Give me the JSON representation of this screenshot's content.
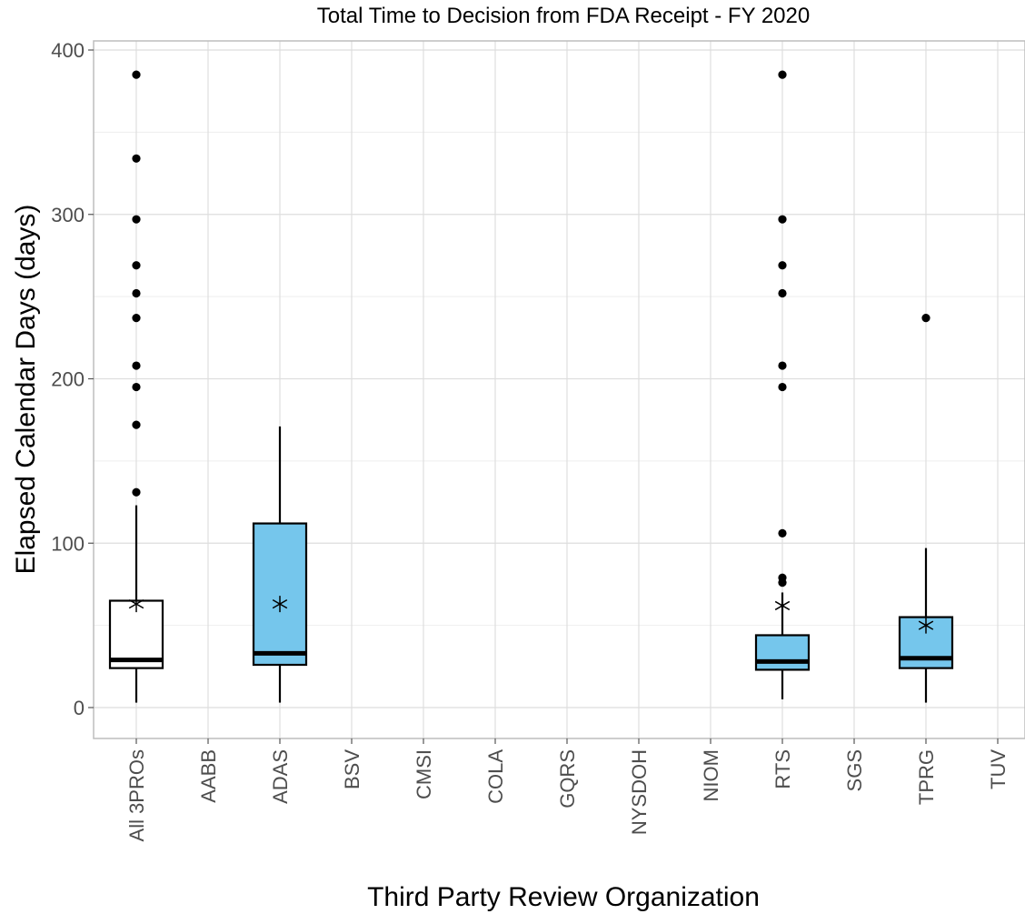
{
  "chart_data": {
    "type": "boxplot",
    "title": "Total Time to Decision from FDA Receipt - FY 2020",
    "xlabel": "Third Party Review Organization",
    "ylabel": "Elapsed Calendar Days (days)",
    "ylim": [
      -18,
      405
    ],
    "yticks": [
      0,
      100,
      200,
      300,
      400
    ],
    "grid": true,
    "categories": [
      "All 3PROs",
      "AABB",
      "ADAS",
      "BSV",
      "CMSI",
      "COLA",
      "GQRS",
      "NYSDOH",
      "NIOM",
      "RTS",
      "SGS",
      "TPRG",
      "TUV"
    ],
    "boxes": [
      {
        "category": "All 3PROs",
        "fill": "#ffffff",
        "min": 3,
        "q1": 24,
        "median": 29,
        "q3": 65,
        "max": 123,
        "mean": 63,
        "outliers": [
          131,
          172,
          195,
          208,
          237,
          252,
          269,
          297,
          334,
          385
        ]
      },
      {
        "category": "ADAS",
        "fill": "#75c6ec",
        "min": 3,
        "q1": 26,
        "median": 33,
        "q3": 112,
        "max": 171,
        "mean": 63,
        "outliers": []
      },
      {
        "category": "RTS",
        "fill": "#75c6ec",
        "min": 5,
        "q1": 23,
        "median": 28,
        "q3": 44,
        "max": 70,
        "mean": 62,
        "outliers": [
          76,
          79,
          106,
          195,
          208,
          252,
          269,
          297,
          385
        ]
      },
      {
        "category": "TPRG",
        "fill": "#75c6ec",
        "min": 3,
        "q1": 24,
        "median": 30,
        "q3": 55,
        "max": 97,
        "mean": 50,
        "outliers": [
          237
        ]
      }
    ]
  }
}
